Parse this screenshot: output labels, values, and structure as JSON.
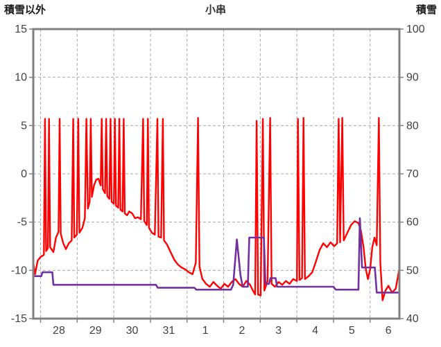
{
  "header": {
    "left_axis_title": "積雪以外",
    "chart_title": "小串",
    "right_axis_title": "積雪"
  },
  "chart_data": {
    "type": "line",
    "title": "小串",
    "x_axis": {
      "labels": [
        "28",
        "29",
        "30",
        "31",
        "1",
        "2",
        "3",
        "4",
        "5",
        "6"
      ],
      "label_positions": [
        0.7,
        1.7,
        2.7,
        3.7,
        4.7,
        5.7,
        6.7,
        7.7,
        8.7,
        9.7
      ],
      "gridline_positions": [
        0.2,
        1.2,
        2.2,
        3.2,
        4.2,
        5.2,
        6.2,
        7.2,
        8.2,
        9.2
      ],
      "range": [
        0,
        10
      ]
    },
    "left_axis": {
      "label": "積雪以外",
      "min": -15,
      "max": 15,
      "ticks": [
        15,
        10,
        5,
        0,
        -5,
        -10,
        -15
      ]
    },
    "right_axis": {
      "label": "積雪",
      "min": 40,
      "max": 100,
      "ticks": [
        100,
        90,
        80,
        70,
        60,
        50,
        40
      ]
    },
    "grid": true,
    "legend": "none",
    "colors": {
      "grid": "#a6a6a6",
      "border": "#808080",
      "tick_label": "#404040",
      "red_series": "#ff0000",
      "purple_series": "#7030a0"
    },
    "series": [
      {
        "name": "red-line",
        "color": "#ff0000",
        "axis": "left",
        "width": 2.4,
        "points": [
          [
            0.0,
            -9.2
          ],
          [
            0.05,
            -10.4
          ],
          [
            0.12,
            -9.0
          ],
          [
            0.2,
            -8.6
          ],
          [
            0.29,
            -8.4
          ],
          [
            0.32,
            5.7
          ],
          [
            0.35,
            -8.0
          ],
          [
            0.4,
            -7.7
          ],
          [
            0.43,
            5.7
          ],
          [
            0.46,
            -7.6
          ],
          [
            0.55,
            -8.1
          ],
          [
            0.62,
            -6.6
          ],
          [
            0.69,
            -6.0
          ],
          [
            0.72,
            5.7
          ],
          [
            0.75,
            -6.2
          ],
          [
            0.82,
            -7.2
          ],
          [
            0.89,
            -7.8
          ],
          [
            0.97,
            -7.2
          ],
          [
            1.05,
            -6.9
          ],
          [
            1.09,
            5.7
          ],
          [
            1.12,
            -6.6
          ],
          [
            1.19,
            -6.3
          ],
          [
            1.23,
            5.7
          ],
          [
            1.26,
            -6.1
          ],
          [
            1.34,
            -5.6
          ],
          [
            1.41,
            -4.6
          ],
          [
            1.45,
            5.7
          ],
          [
            1.49,
            -3.6
          ],
          [
            1.54,
            -2.9
          ],
          [
            1.57,
            5.7
          ],
          [
            1.6,
            -2.4
          ],
          [
            1.66,
            -1.2
          ],
          [
            1.72,
            -0.6
          ],
          [
            1.78,
            -0.5
          ],
          [
            1.84,
            -1.2
          ],
          [
            1.87,
            5.7
          ],
          [
            1.9,
            -1.6
          ],
          [
            1.96,
            -2.0
          ],
          [
            1.99,
            5.7
          ],
          [
            2.02,
            -2.3
          ],
          [
            2.08,
            -2.6
          ],
          [
            2.11,
            5.7
          ],
          [
            2.14,
            -2.9
          ],
          [
            2.2,
            -3.1
          ],
          [
            2.23,
            5.7
          ],
          [
            2.26,
            -3.3
          ],
          [
            2.32,
            -3.5
          ],
          [
            2.35,
            5.7
          ],
          [
            2.38,
            -3.7
          ],
          [
            2.44,
            -3.9
          ],
          [
            2.47,
            5.7
          ],
          [
            2.5,
            -4.1
          ],
          [
            2.56,
            -4.3
          ],
          [
            2.62,
            -3.9
          ],
          [
            2.7,
            -4.1
          ],
          [
            2.78,
            -4.6
          ],
          [
            2.86,
            -4.5
          ],
          [
            2.94,
            -4.7
          ],
          [
            3.0,
            5.7
          ],
          [
            3.03,
            -4.9
          ],
          [
            3.1,
            -5.3
          ],
          [
            3.13,
            5.7
          ],
          [
            3.16,
            -5.6
          ],
          [
            3.24,
            -6.1
          ],
          [
            3.32,
            -6.3
          ],
          [
            3.39,
            5.7
          ],
          [
            3.42,
            -6.5
          ],
          [
            3.49,
            -6.6
          ],
          [
            3.54,
            5.7
          ],
          [
            3.57,
            -6.9
          ],
          [
            3.65,
            -7.3
          ],
          [
            3.75,
            -8.1
          ],
          [
            3.85,
            -8.9
          ],
          [
            3.95,
            -9.4
          ],
          [
            4.05,
            -9.7
          ],
          [
            4.15,
            -9.9
          ],
          [
            4.25,
            -10.2
          ],
          [
            4.35,
            -10.4
          ],
          [
            4.44,
            -9.2
          ],
          [
            4.5,
            5.8
          ],
          [
            4.54,
            -9.6
          ],
          [
            4.62,
            -10.9
          ],
          [
            4.72,
            -11.4
          ],
          [
            4.82,
            -11.7
          ],
          [
            4.92,
            -11.2
          ],
          [
            5.02,
            -11.6
          ],
          [
            5.12,
            -11.9
          ],
          [
            5.22,
            -11.4
          ],
          [
            5.32,
            -11.7
          ],
          [
            5.42,
            -11.2
          ],
          [
            5.52,
            -10.9
          ],
          [
            5.62,
            -11.4
          ],
          [
            5.72,
            -11.7
          ],
          [
            5.82,
            -11.1
          ],
          [
            5.92,
            -11.5
          ],
          [
            6.0,
            -12.1
          ],
          [
            6.06,
            -12.5
          ],
          [
            6.1,
            5.5
          ],
          [
            6.14,
            -12.5
          ],
          [
            6.21,
            -12.6
          ],
          [
            6.27,
            5.7
          ],
          [
            6.31,
            -12.1
          ],
          [
            6.4,
            -11.1
          ],
          [
            6.47,
            5.8
          ],
          [
            6.51,
            -11.4
          ],
          [
            6.6,
            -11.7
          ],
          [
            6.7,
            -11.2
          ],
          [
            6.8,
            -11.5
          ],
          [
            6.9,
            -11.1
          ],
          [
            7.0,
            -11.4
          ],
          [
            7.1,
            -10.9
          ],
          [
            7.2,
            -11.1
          ],
          [
            7.23,
            5.7
          ],
          [
            7.27,
            -11.0
          ],
          [
            7.34,
            -10.8
          ],
          [
            7.38,
            5.8
          ],
          [
            7.42,
            -10.9
          ],
          [
            7.52,
            -10.6
          ],
          [
            7.62,
            -10.2
          ],
          [
            7.72,
            -9.1
          ],
          [
            7.82,
            -7.9
          ],
          [
            7.92,
            -7.2
          ],
          [
            8.02,
            -7.6
          ],
          [
            8.12,
            -7.1
          ],
          [
            8.22,
            -7.5
          ],
          [
            8.3,
            -7.2
          ],
          [
            8.34,
            5.7
          ],
          [
            8.38,
            -7.1
          ],
          [
            8.44,
            5.8
          ],
          [
            8.48,
            -6.9
          ],
          [
            8.58,
            -6.1
          ],
          [
            8.68,
            -5.3
          ],
          [
            8.78,
            -4.9
          ],
          [
            8.88,
            -5.1
          ],
          [
            8.95,
            -5.9
          ],
          [
            9.02,
            -7.6
          ],
          [
            9.08,
            -9.8
          ],
          [
            9.14,
            -10.9
          ],
          [
            9.2,
            -9.9
          ],
          [
            9.26,
            -7.6
          ],
          [
            9.32,
            -6.6
          ],
          [
            9.38,
            -7.4
          ],
          [
            9.44,
            5.8
          ],
          [
            9.48,
            -9.2
          ],
          [
            9.54,
            -13.1
          ],
          [
            9.62,
            -12.1
          ],
          [
            9.7,
            -11.6
          ],
          [
            9.8,
            -12.3
          ],
          [
            9.9,
            -11.9
          ],
          [
            10.0,
            -9.8
          ]
        ]
      },
      {
        "name": "purple-line",
        "color": "#7030a0",
        "axis": "right",
        "width": 2.6,
        "points": [
          [
            0.0,
            48.8
          ],
          [
            0.22,
            48.8
          ],
          [
            0.25,
            49.6
          ],
          [
            0.52,
            49.6
          ],
          [
            0.55,
            47.0
          ],
          [
            3.35,
            47.0
          ],
          [
            3.4,
            46.4
          ],
          [
            4.4,
            46.4
          ],
          [
            4.45,
            46.0
          ],
          [
            5.4,
            46.0
          ],
          [
            5.46,
            47.0
          ],
          [
            5.56,
            56.4
          ],
          [
            5.66,
            49.0
          ],
          [
            5.72,
            46.6
          ],
          [
            5.86,
            46.6
          ],
          [
            5.9,
            56.8
          ],
          [
            6.3,
            56.8
          ],
          [
            6.34,
            47.2
          ],
          [
            6.44,
            47.2
          ],
          [
            6.48,
            48.4
          ],
          [
            6.62,
            48.4
          ],
          [
            6.66,
            46.6
          ],
          [
            8.2,
            46.6
          ],
          [
            8.26,
            46.0
          ],
          [
            8.88,
            46.0
          ],
          [
            8.92,
            60.8
          ],
          [
            8.98,
            50.6
          ],
          [
            9.33,
            50.6
          ],
          [
            9.38,
            45.4
          ],
          [
            10.0,
            45.4
          ]
        ]
      }
    ]
  }
}
